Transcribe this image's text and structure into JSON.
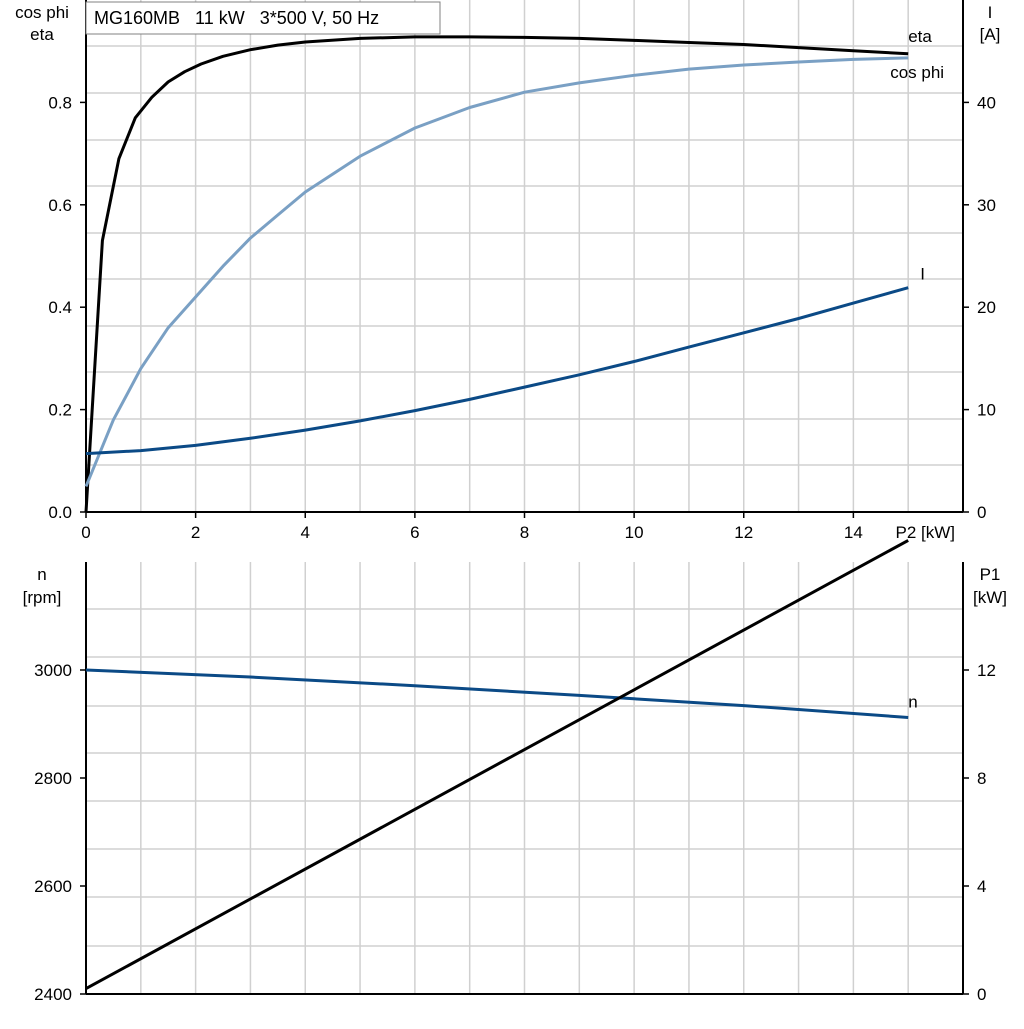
{
  "title": "MG160MB   11 kW   3*500 V, 50 Hz",
  "chart_data": [
    {
      "type": "line",
      "x_label": "P2 [kW]",
      "x_ticks": [
        0,
        2,
        4,
        6,
        8,
        10,
        12,
        14
      ],
      "xlim": [
        0,
        16
      ],
      "left_axis": {
        "label_lines": [
          "cos phi",
          "eta"
        ],
        "ylim": [
          0,
          1.0
        ],
        "ticks": [
          0.0,
          0.2,
          0.4,
          0.6,
          0.8
        ],
        "tick_labels": [
          "0.0",
          "0.2",
          "0.4",
          "0.6",
          "0.8"
        ]
      },
      "right_axis": {
        "label_lines": [
          "I",
          "[A]"
        ],
        "ylim": [
          0,
          50
        ],
        "ticks": [
          0,
          10,
          20,
          30,
          40
        ],
        "tick_labels": [
          "0",
          "10",
          "20",
          "30",
          "40"
        ]
      },
      "grid": true,
      "series": [
        {
          "name": "eta",
          "axis": "left",
          "color": "#000000",
          "x": [
            0,
            0.3,
            0.6,
            0.9,
            1.2,
            1.5,
            1.8,
            2.1,
            2.5,
            3,
            3.5,
            4,
            5,
            6,
            7,
            8,
            9,
            10,
            11,
            12,
            13,
            14,
            15
          ],
          "y": [
            0.0,
            0.53,
            0.69,
            0.77,
            0.81,
            0.84,
            0.86,
            0.875,
            0.89,
            0.903,
            0.912,
            0.918,
            0.925,
            0.928,
            0.928,
            0.927,
            0.925,
            0.921,
            0.917,
            0.913,
            0.907,
            0.901,
            0.895
          ]
        },
        {
          "name": "cos phi",
          "axis": "left",
          "color": "#7aa0c4",
          "x": [
            0,
            0.5,
            1,
            1.5,
            2,
            2.5,
            3,
            3.5,
            4,
            5,
            6,
            7,
            8,
            9,
            10,
            11,
            12,
            13,
            14,
            15
          ],
          "y": [
            0.05,
            0.18,
            0.28,
            0.36,
            0.42,
            0.48,
            0.535,
            0.58,
            0.625,
            0.695,
            0.75,
            0.79,
            0.82,
            0.838,
            0.853,
            0.865,
            0.873,
            0.879,
            0.884,
            0.887
          ]
        },
        {
          "name": "I",
          "axis": "right",
          "color": "#0b4a86",
          "x": [
            0,
            1,
            2,
            3,
            4,
            5,
            6,
            7,
            8,
            9,
            10,
            11,
            12,
            13,
            14,
            15
          ],
          "y": [
            5.7,
            6.0,
            6.5,
            7.2,
            8.0,
            8.9,
            9.9,
            11.0,
            12.2,
            13.4,
            14.7,
            16.1,
            17.5,
            18.9,
            20.4,
            21.9
          ]
        }
      ]
    },
    {
      "type": "line",
      "x_label": "",
      "x_ticks": [
        0,
        2,
        4,
        6,
        8,
        10,
        12,
        14
      ],
      "xlim": [
        0,
        16
      ],
      "left_axis": {
        "label_lines": [
          "n",
          "[rpm]"
        ],
        "ylim": [
          2400,
          3200
        ],
        "ticks": [
          2400,
          2600,
          2800,
          3000
        ],
        "tick_labels": [
          "2400",
          "2600",
          "2800",
          "3000"
        ]
      },
      "right_axis": {
        "label_lines": [
          "P1",
          "[kW]"
        ],
        "ylim": [
          0,
          16
        ],
        "ticks": [
          0,
          4,
          8,
          12
        ],
        "tick_labels": [
          "0",
          "4",
          "8",
          "12"
        ]
      },
      "grid": true,
      "series": [
        {
          "name": "n",
          "axis": "left",
          "color": "#0b4a86",
          "x": [
            0,
            3,
            6,
            9,
            12,
            15
          ],
          "y": [
            3000,
            2987,
            2971,
            2953,
            2934,
            2912
          ]
        },
        {
          "name": "",
          "axis": "right",
          "color": "#000000",
          "x": [
            0,
            15
          ],
          "y": [
            0.2,
            16.8
          ]
        }
      ]
    }
  ]
}
